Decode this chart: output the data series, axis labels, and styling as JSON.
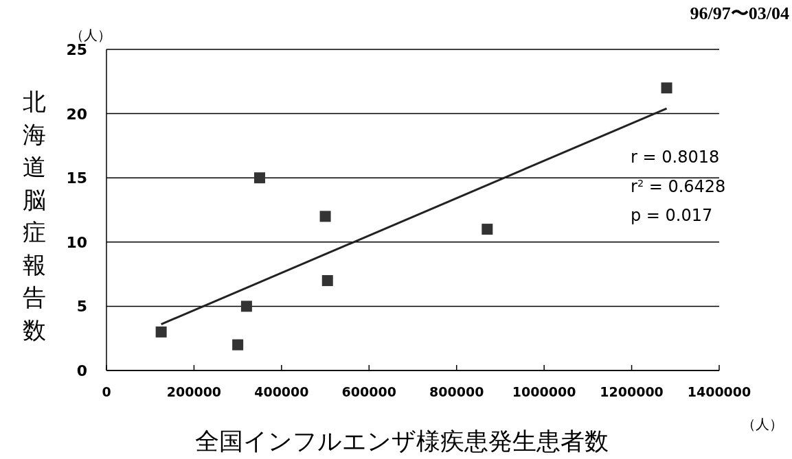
{
  "chart_data": {
    "type": "scatter",
    "title": "96/97〜03/04",
    "xlabel": "全国インフルエンザ様疾患発生患者数",
    "ylabel": "北海道脳症報告数",
    "x": [
      125000,
      300000,
      320000,
      350000,
      500000,
      505000,
      870000,
      1280000
    ],
    "series": [
      {
        "color": "#333333",
        "marker": "square",
        "values": [
          3,
          2,
          5,
          15,
          12,
          7,
          11,
          22
        ]
      },
      {
        "type": "line",
        "color": "#222222",
        "x": [
          125000,
          1280000
        ],
        "values": [
          3.6,
          20.4
        ],
        "marker": "none"
      }
    ],
    "xlim": [
      0,
      1400000
    ],
    "xticks": [
      0,
      200000,
      400000,
      600000,
      800000,
      1000000,
      1200000,
      1400000
    ],
    "ylim": [
      0,
      25
    ],
    "yticks": [
      0,
      5,
      10,
      15,
      20,
      25
    ],
    "grid": "y",
    "annotations": [
      "r  = 0.8018",
      "r$^{2}$ = 0.6428",
      "p  = 0.017",
      "（人）",
      "（人）"
    ]
  }
}
